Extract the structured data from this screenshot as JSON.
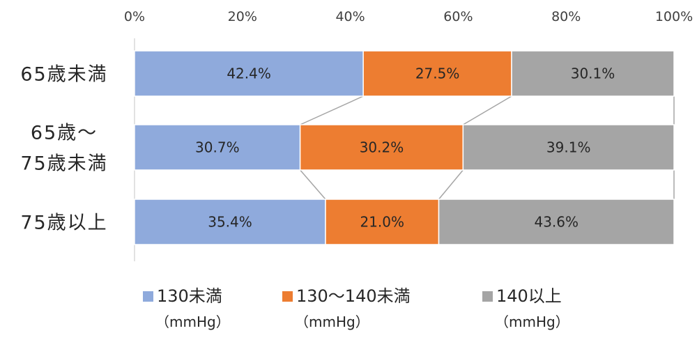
{
  "chart_data": {
    "type": "bar",
    "orientation": "horizontal",
    "stacked": true,
    "percent": true,
    "xlim": [
      0,
      100
    ],
    "x_ticks": [
      "0%",
      "20%",
      "40%",
      "60%",
      "80%",
      "100%"
    ],
    "categories": [
      {
        "lines": [
          "65歳未満"
        ]
      },
      {
        "lines": [
          "65歳～",
          "75歳未満"
        ]
      },
      {
        "lines": [
          "75歳以上"
        ]
      }
    ],
    "series": [
      {
        "name": "130未満",
        "unit": "（mmHg）",
        "color": "#8faadc",
        "values": [
          42.4,
          30.7,
          35.4
        ],
        "labels": [
          "42.4%",
          "30.7%",
          "35.4%"
        ]
      },
      {
        "name": "130～140未満",
        "unit": "（mmHg）",
        "color": "#ed7d31",
        "values": [
          27.5,
          30.2,
          21.0
        ],
        "labels": [
          "27.5%",
          "30.2%",
          "21.0%"
        ]
      },
      {
        "name": "140以上",
        "unit": "（mmHg）",
        "color": "#a5a5a5",
        "values": [
          30.1,
          39.1,
          43.6
        ],
        "labels": [
          "30.1%",
          "39.1%",
          "43.6%"
        ]
      }
    ],
    "series_lines": true,
    "grid": false,
    "legend_position": "bottom"
  }
}
